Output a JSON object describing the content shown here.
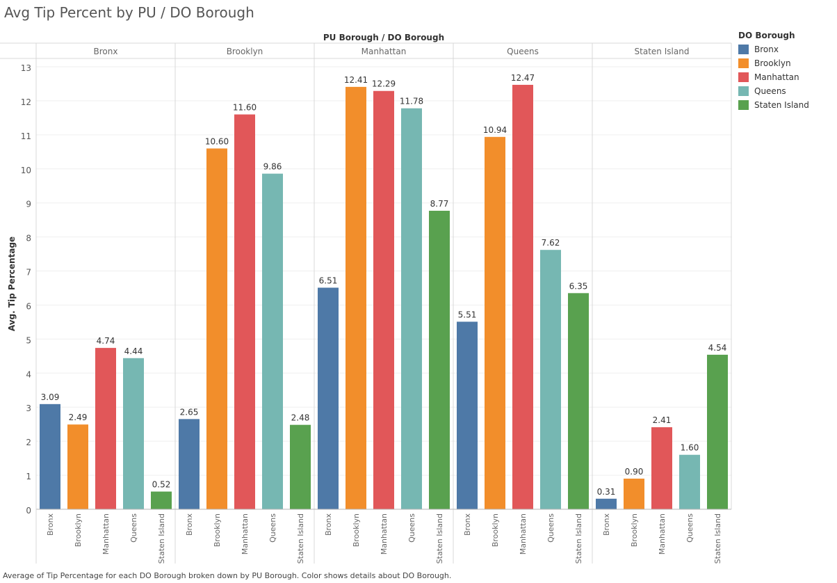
{
  "title": "Avg Tip Percent by PU / DO Borough",
  "footer": "Average of Tip Percentage for each DO Borough broken down by PU Borough.  Color shows details about DO Borough.",
  "legend": {
    "title": "DO Borough",
    "items": [
      {
        "label": "Bronx",
        "color": "#4e79a7"
      },
      {
        "label": "Brooklyn",
        "color": "#f28e2b"
      },
      {
        "label": "Manhattan",
        "color": "#e15759"
      },
      {
        "label": "Queens",
        "color": "#76b7b2"
      },
      {
        "label": "Staten Island",
        "color": "#59a14f"
      }
    ]
  },
  "chart_data": {
    "type": "bar",
    "title": "Avg Tip Percent by PU / DO Borough",
    "column_header": "PU Borough  /  DO Borough",
    "ylabel": "Avg. Tip Percentage",
    "ylim": [
      0,
      13
    ],
    "yticks": [
      0,
      1,
      2,
      3,
      4,
      5,
      6,
      7,
      8,
      9,
      10,
      11,
      12,
      13
    ],
    "grid": true,
    "legend_position": "right",
    "categories": [
      "Bronx",
      "Brooklyn",
      "Manhattan",
      "Queens",
      "Staten Island"
    ],
    "panels": [
      {
        "pu_borough": "Bronx",
        "values": [
          3.09,
          2.49,
          4.74,
          4.44,
          0.52
        ],
        "labels": [
          "3.09",
          "2.49",
          "4.74",
          "4.44",
          "0.52"
        ]
      },
      {
        "pu_borough": "Brooklyn",
        "values": [
          2.65,
          10.6,
          11.6,
          9.86,
          2.48
        ],
        "labels": [
          "2.65",
          "10.60",
          "11.60",
          "9.86",
          "2.48"
        ]
      },
      {
        "pu_borough": "Manhattan",
        "values": [
          6.51,
          12.41,
          12.29,
          11.78,
          8.77
        ],
        "labels": [
          "6.51",
          "12.41",
          "12.29",
          "11.78",
          "8.77"
        ]
      },
      {
        "pu_borough": "Queens",
        "values": [
          5.51,
          10.94,
          12.47,
          7.62,
          6.35
        ],
        "labels": [
          "5.51",
          "10.94",
          "12.47",
          "7.62",
          "6.35"
        ]
      },
      {
        "pu_borough": "Staten Island",
        "values": [
          0.31,
          0.9,
          2.41,
          1.6,
          4.54
        ],
        "labels": [
          "0.31",
          "0.90",
          "2.41",
          "1.60",
          "4.54"
        ]
      }
    ]
  }
}
